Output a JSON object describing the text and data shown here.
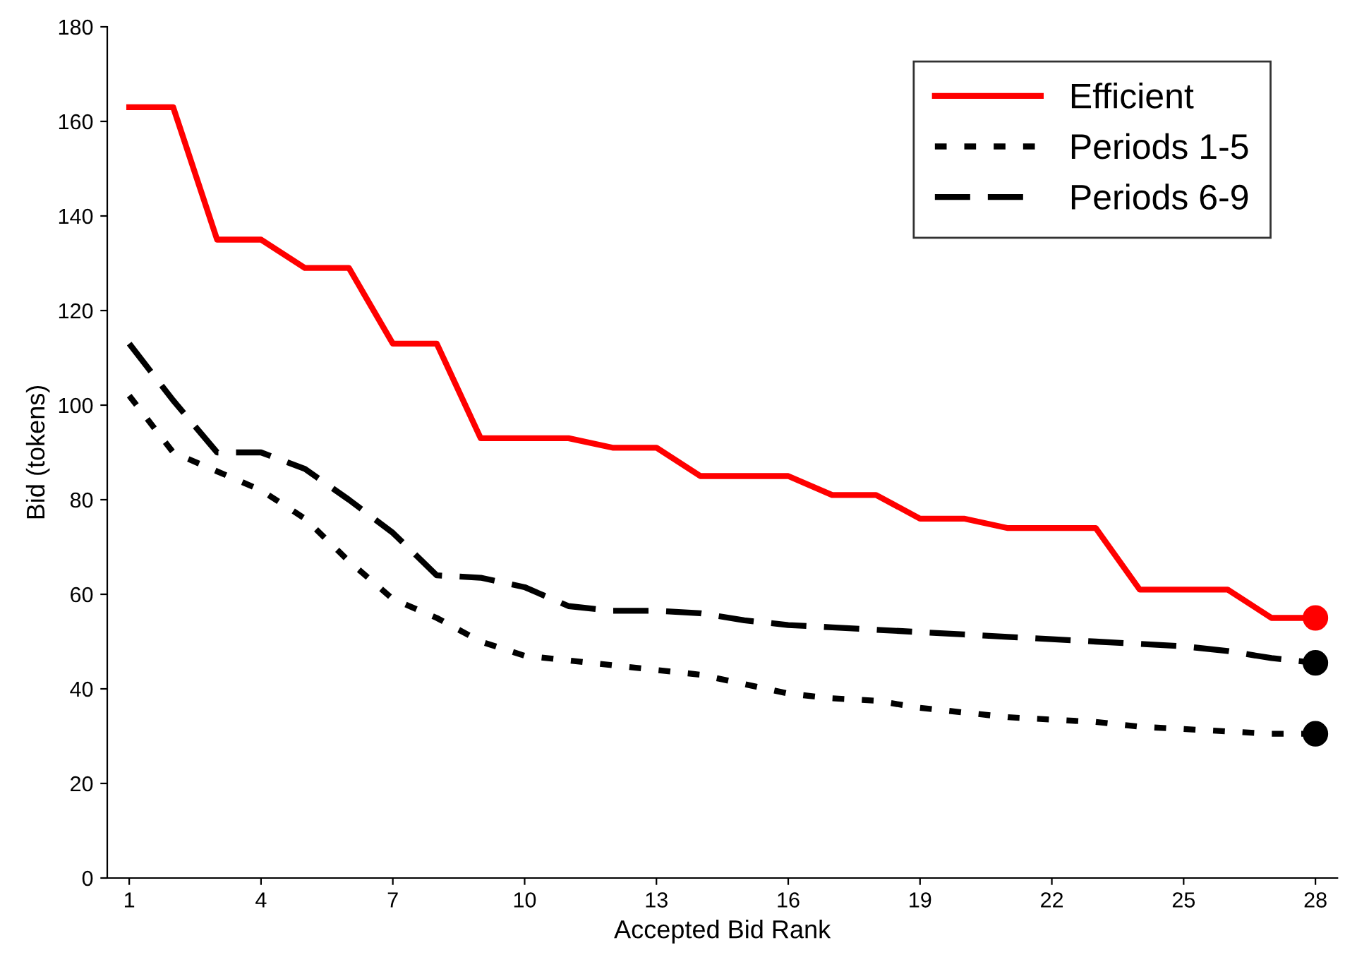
{
  "chart_data": {
    "type": "line",
    "xlabel": "Accepted Bid Rank",
    "ylabel": "Bid (tokens)",
    "x": [
      1,
      2,
      3,
      4,
      5,
      6,
      7,
      8,
      9,
      10,
      11,
      12,
      13,
      14,
      15,
      16,
      17,
      18,
      19,
      20,
      21,
      22,
      23,
      24,
      25,
      26,
      27,
      28
    ],
    "xlim": [
      0.5,
      28.5
    ],
    "xticks": [
      1,
      4,
      7,
      10,
      13,
      16,
      19,
      22,
      25,
      28
    ],
    "ylim": [
      0,
      180
    ],
    "yticks": [
      0,
      20,
      40,
      60,
      80,
      100,
      120,
      140,
      160,
      180
    ],
    "grid": false,
    "legend": "top right",
    "series": [
      {
        "type": "scatter",
        "marker": "circle",
        "color": "#ff0000",
        "values": [
          null,
          null,
          null,
          null,
          null,
          null,
          null,
          null,
          null,
          null,
          null,
          null,
          null,
          null,
          null,
          null,
          null,
          null,
          null,
          null,
          null,
          null,
          null,
          null,
          null,
          null,
          null,
          55
        ]
      },
      {
        "type": "scatter",
        "marker": "circle",
        "color": "#000000",
        "values": [
          null,
          null,
          null,
          null,
          null,
          null,
          null,
          null,
          null,
          null,
          null,
          null,
          null,
          null,
          null,
          null,
          null,
          null,
          null,
          null,
          null,
          null,
          null,
          null,
          null,
          null,
          null,
          30.5
        ]
      },
      {
        "type": "scatter",
        "marker": "circle",
        "color": "#000000",
        "values": [
          null,
          null,
          null,
          null,
          null,
          null,
          null,
          null,
          null,
          null,
          null,
          null,
          null,
          null,
          null,
          null,
          null,
          null,
          null,
          null,
          null,
          null,
          null,
          null,
          null,
          null,
          null,
          45.5
        ]
      },
      {
        "name": "Efficient",
        "color": "#ff0000",
        "line_style": "solid",
        "values": [
          163,
          163,
          135,
          135,
          129,
          129,
          113,
          113,
          93,
          93,
          93,
          91,
          91,
          85,
          85,
          85,
          81,
          81,
          76,
          76,
          74,
          74,
          74,
          61,
          61,
          61,
          55,
          55
        ]
      },
      {
        "name": "Periods 1-5",
        "color": "#000000",
        "line_style": "dotted",
        "values": [
          102,
          90,
          86,
          82,
          76,
          67,
          59,
          55,
          50,
          47,
          46,
          45,
          44,
          43,
          41,
          39,
          38,
          37.5,
          36,
          35,
          34,
          33.5,
          33,
          32,
          31.5,
          31,
          30.5,
          30.5
        ]
      },
      {
        "name": "Periods 6-9",
        "color": "#000000",
        "line_style": "dashed",
        "values": [
          113,
          101,
          90,
          90,
          86.5,
          80,
          73,
          64,
          63.5,
          61.5,
          57.5,
          56.5,
          56.5,
          56,
          54.5,
          53.5,
          53,
          52.5,
          52,
          51.5,
          51,
          50.5,
          50,
          49.5,
          49,
          48,
          46.5,
          45.5
        ]
      }
    ]
  }
}
